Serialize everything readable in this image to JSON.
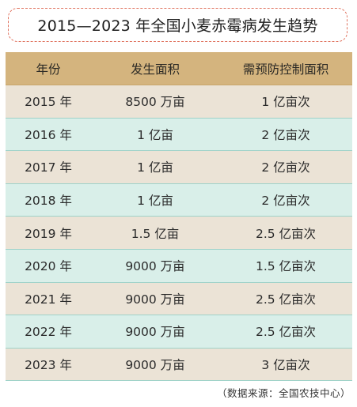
{
  "title": "2015—2023 年全国小麦赤霉病发生趋势",
  "table": {
    "headers": [
      "年份",
      "发生面积",
      "需预防控制面积"
    ],
    "rows": [
      [
        "2015 年",
        "8500 万亩",
        "1 亿亩次"
      ],
      [
        "2016 年",
        "1 亿亩",
        "2 亿亩次"
      ],
      [
        "2017 年",
        "1 亿亩",
        "2 亿亩次"
      ],
      [
        "2018 年",
        "1 亿亩",
        "2 亿亩次"
      ],
      [
        "2019 年",
        "1.5 亿亩",
        "2.5 亿亩次"
      ],
      [
        "2020 年",
        "9000 万亩",
        "1.5 亿亩次"
      ],
      [
        "2021 年",
        "9000 万亩",
        "2.5 亿亩次"
      ],
      [
        "2022 年",
        "9000 万亩",
        "2.5 亿亩次"
      ],
      [
        "2023 年",
        "9000 万亩",
        "3 亿亩次"
      ]
    ]
  },
  "source": "（数据来源：全国农技中心）",
  "colors": {
    "header_bg": "#d4b47e",
    "row_beige": "#ebe3d6",
    "row_mint": "#d9efe9",
    "title_border": "#e0735f"
  }
}
